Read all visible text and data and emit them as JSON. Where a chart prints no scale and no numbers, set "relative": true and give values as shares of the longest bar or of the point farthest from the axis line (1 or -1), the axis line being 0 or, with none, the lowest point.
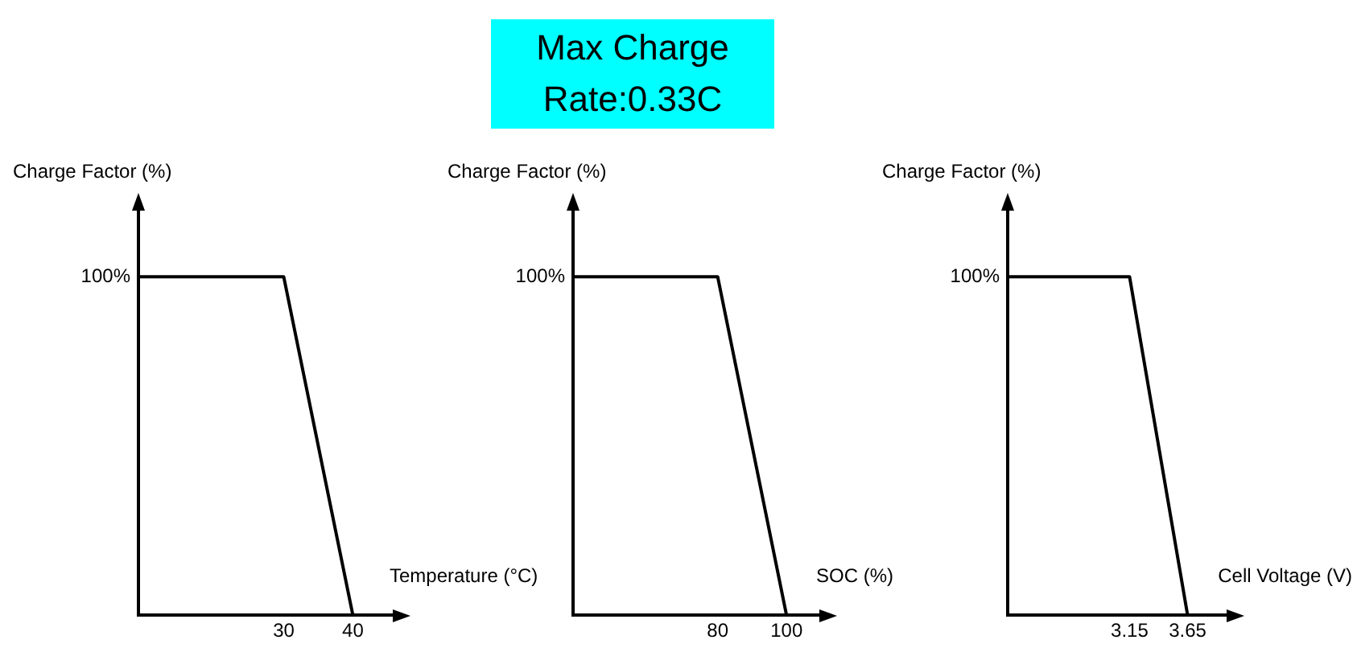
{
  "chart_data": [
    {
      "type": "line",
      "xlabel": "Temperature (°C)",
      "ylabel": "Charge Factor (%)",
      "x": [
        9,
        30,
        40
      ],
      "values": [
        1,
        1,
        0
      ],
      "relative": true,
      "color": "#000000",
      "xlim": [
        9,
        46
      ],
      "xticks": [
        30,
        40
      ],
      "annotations": [
        {
          "text": "100%",
          "x": 9,
          "y": 1
        }
      ],
      "grid": false,
      "marker": "none"
    },
    {
      "type": "line",
      "title": "Max Charge\nRate:0.33C",
      "xlabel": "SOC (%)",
      "ylabel": "Charge Factor (%)",
      "x": [
        38,
        80,
        100
      ],
      "values": [
        1,
        1,
        0
      ],
      "relative": true,
      "color": "#000000",
      "xlim": [
        38,
        110
      ],
      "xticks": [
        80,
        100
      ],
      "annotations": [
        {
          "text": "100%",
          "x": 38,
          "y": 1
        }
      ],
      "grid": false,
      "marker": "none"
    },
    {
      "type": "line",
      "xlabel": "Cell Voltage (V)",
      "ylabel": "Charge Factor (%)",
      "x": [
        2.1,
        3.15,
        3.65
      ],
      "values": [
        1,
        1,
        0
      ],
      "relative": true,
      "color": "#000000",
      "xlim": [
        2.1,
        4.0
      ],
      "xticks": [
        3.15,
        3.65
      ],
      "annotations": [
        {
          "text": "100%",
          "x": 2.1,
          "y": 1
        }
      ],
      "grid": false,
      "marker": "none"
    }
  ]
}
